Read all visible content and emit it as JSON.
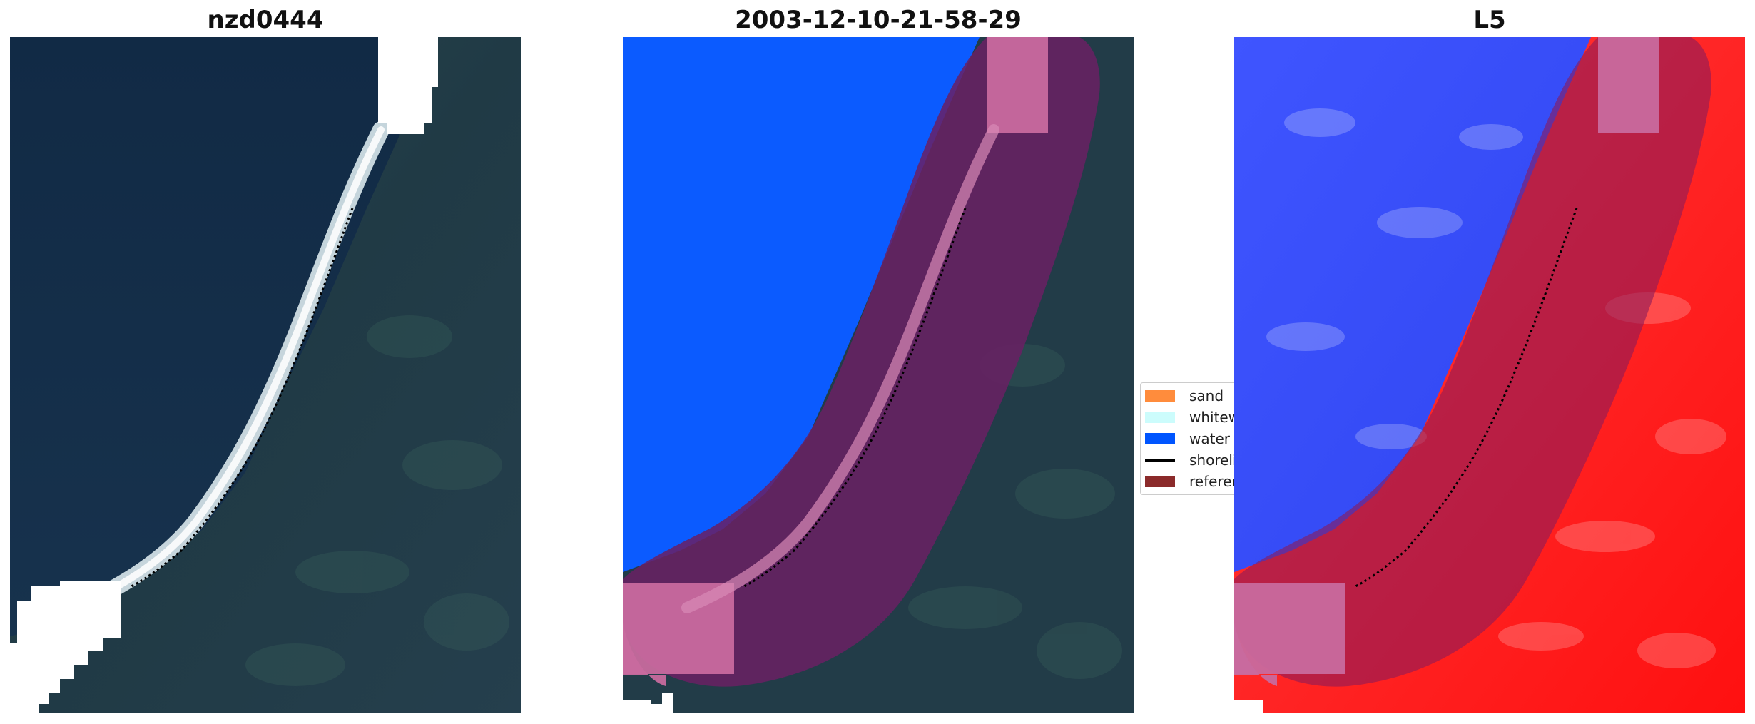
{
  "panels": [
    {
      "title": "nzd0444"
    },
    {
      "title": "2003-12-10-21-58-29"
    },
    {
      "title": "L5"
    }
  ],
  "legend": {
    "items": [
      {
        "label": "sand",
        "color": "#ff8c3c",
        "kind": "patch"
      },
      {
        "label": "whitewater",
        "color": "#ccfcfc",
        "kind": "patch"
      },
      {
        "label": "water",
        "color": "#0055ff",
        "kind": "patch"
      },
      {
        "label": "shoreline",
        "color": "#000000",
        "kind": "line"
      },
      {
        "label": "reference shoreline buffer",
        "color": "#8b2a2a",
        "kind": "patch"
      }
    ]
  },
  "colors": {
    "deep_water": "#15304a",
    "land": "#223c48",
    "whitewater_class": "#0b5bff",
    "buffer": "#7a2a66",
    "nodata": "#ffffff",
    "index_water": "#3a4dff",
    "index_land": "#ff2222"
  }
}
